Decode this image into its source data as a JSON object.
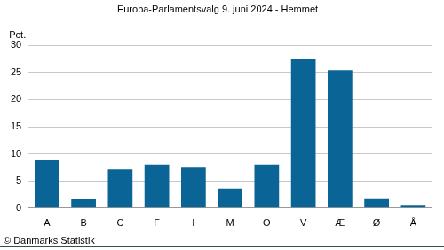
{
  "chart_data": {
    "type": "bar",
    "title": "Europa-Parlamentsvalg 9. juni 2024 - Hemmet",
    "ylabel": "Pct.",
    "source": "© Danmarks Statistik",
    "categories": [
      "A",
      "B",
      "C",
      "F",
      "I",
      "M",
      "O",
      "V",
      "Æ",
      "Ø",
      "Å"
    ],
    "values": [
      8.8,
      1.6,
      7.1,
      8.0,
      7.6,
      3.6,
      8.0,
      27.5,
      25.4,
      1.8,
      0.6
    ],
    "color": "#0b6496",
    "ylim": [
      0,
      30
    ],
    "yticks": [
      0,
      5,
      10,
      15,
      20,
      25,
      30
    ],
    "grid": true
  }
}
